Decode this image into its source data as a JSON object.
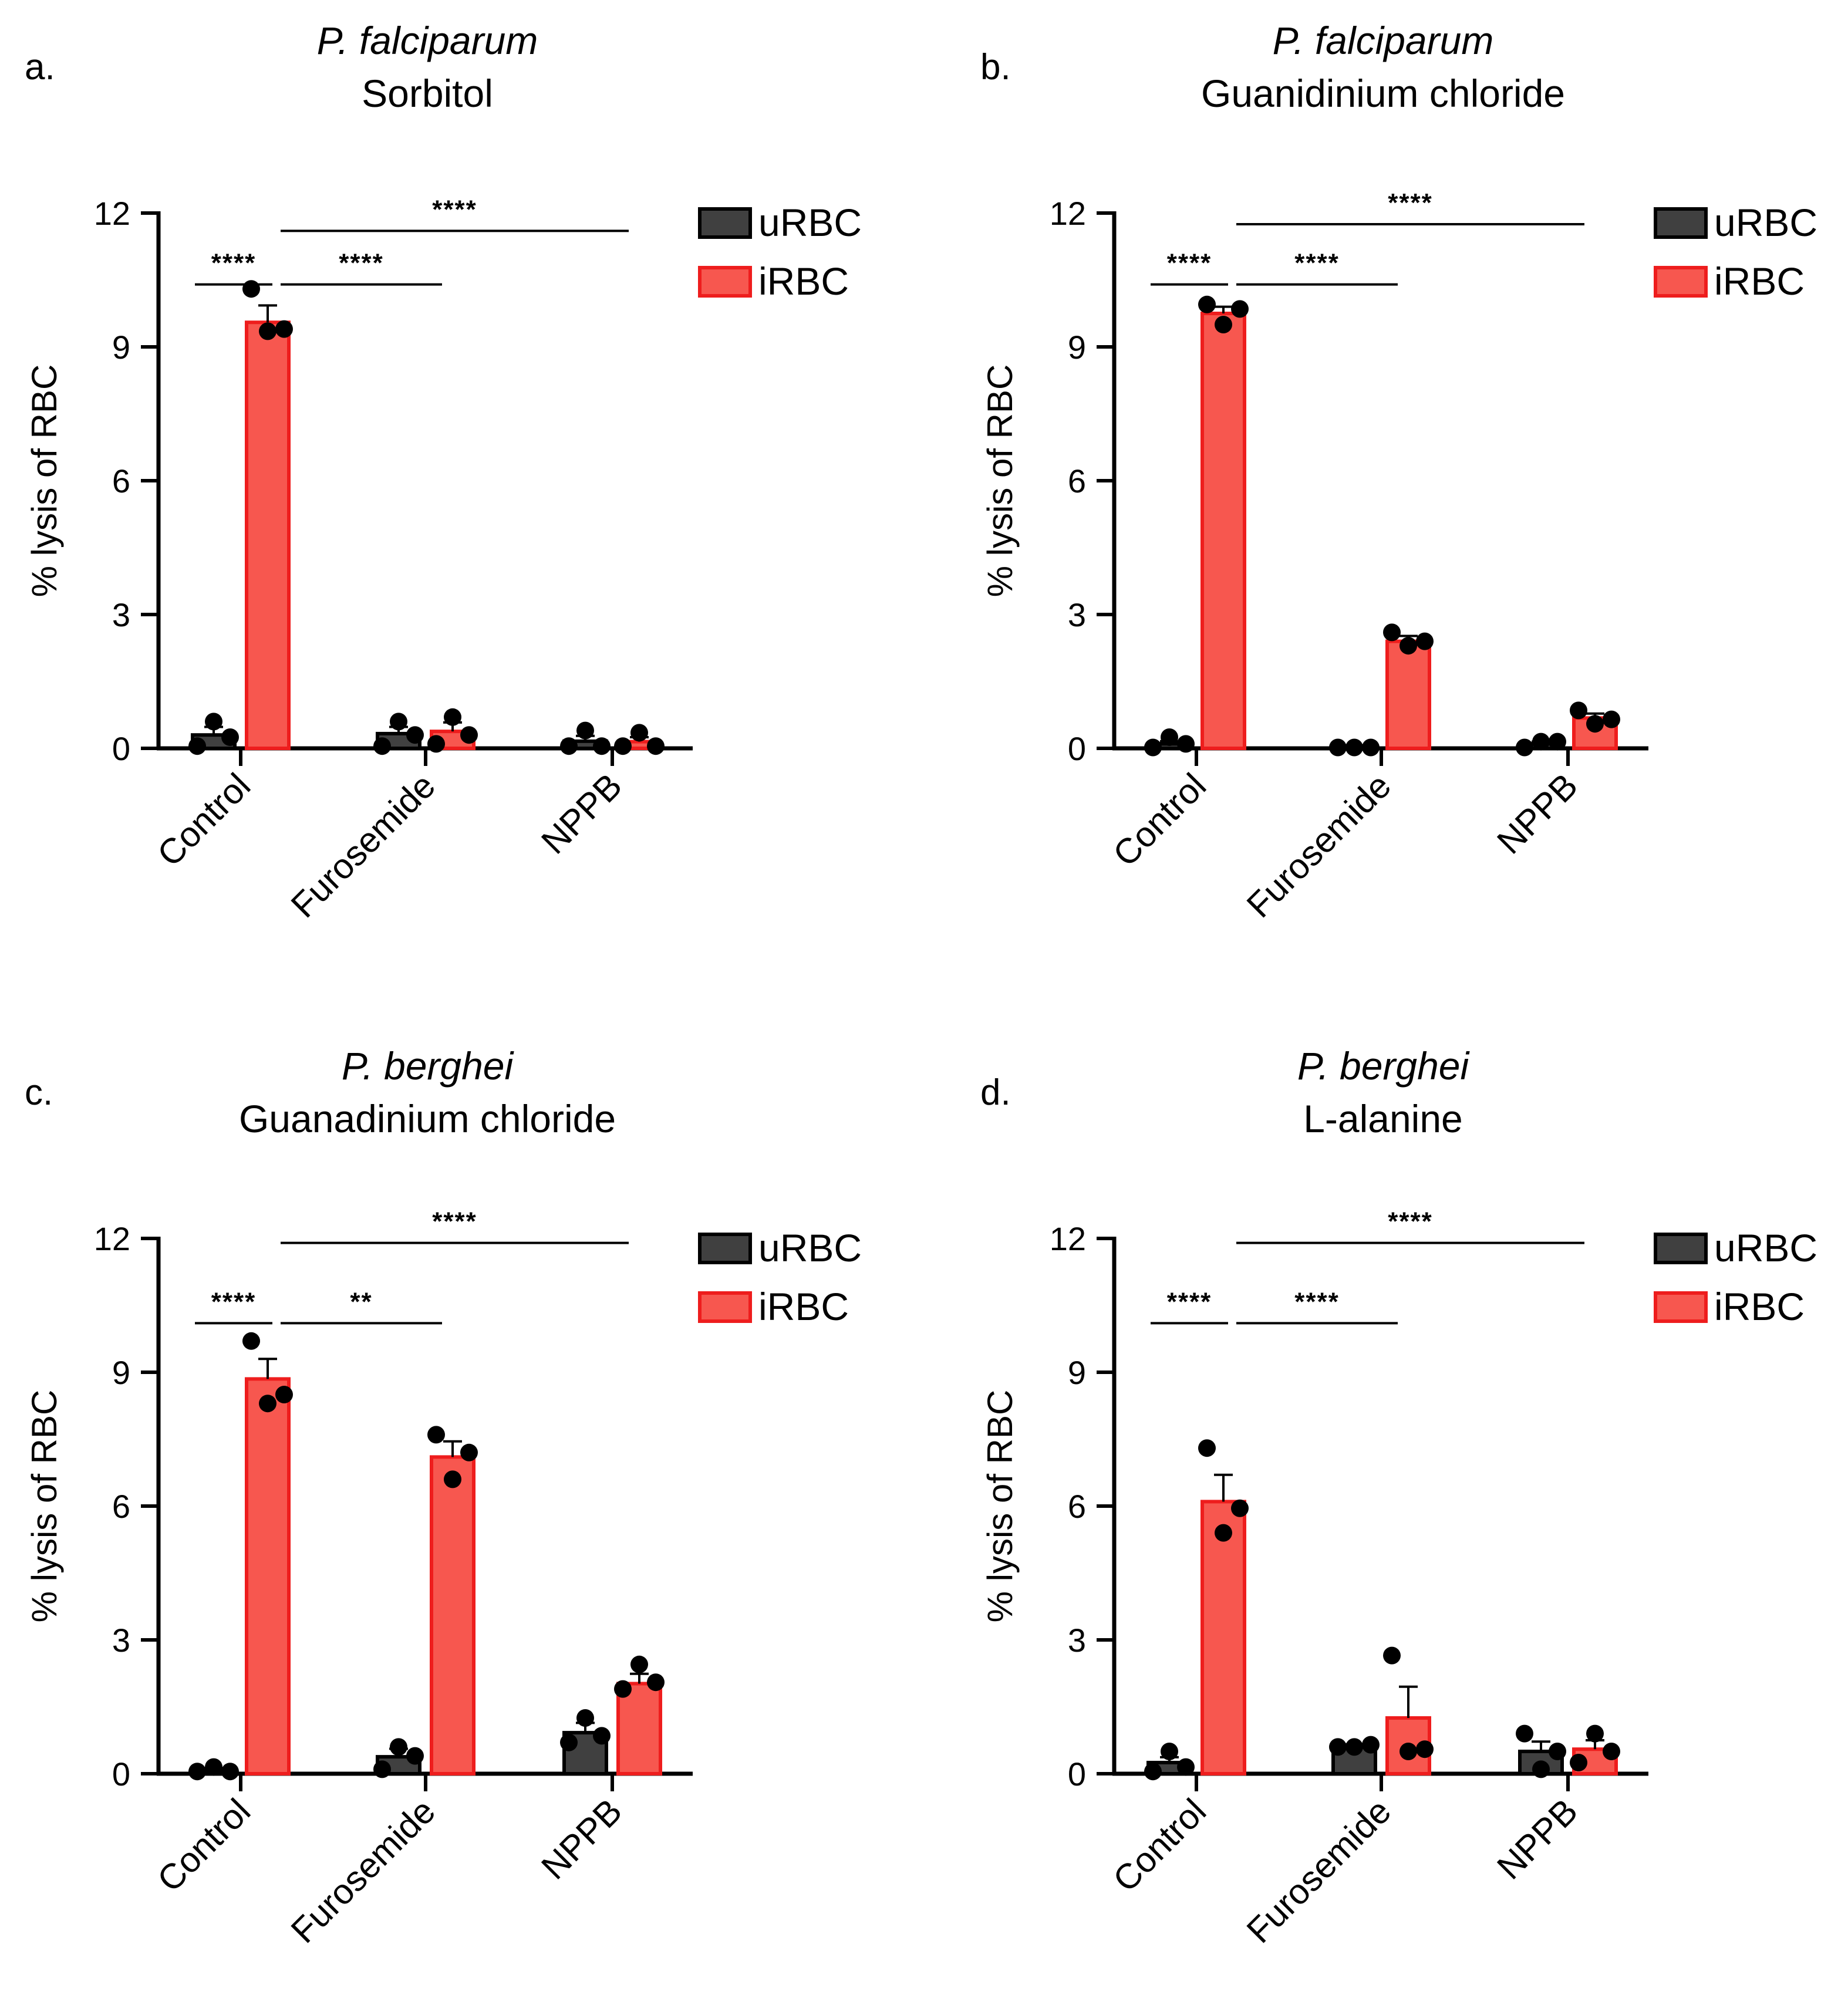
{
  "colors": {
    "uRBC_fill": "#404040",
    "uRBC_stroke": "#000000",
    "iRBC_fill": "#f7574f",
    "iRBC_stroke": "#ee1d1d",
    "axis": "#000000",
    "point": "#000000"
  },
  "chart_data": [
    {
      "type": "bar",
      "panel": "a.",
      "title": [
        "P. falciparum",
        "Sorbitol"
      ],
      "xlabel": "",
      "ylabel": "% lysis of RBC",
      "ylim": [
        0,
        12
      ],
      "yticks": [
        "0",
        "3",
        "6",
        "9",
        "12"
      ],
      "categories": [
        "Control",
        "Furosemide",
        "NPPB"
      ],
      "legend": [
        "uRBC",
        "iRBC"
      ],
      "series": [
        {
          "name": "uRBC",
          "values": [
            0.3,
            0.33,
            0.16
          ],
          "sem": [
            0.18,
            0.15,
            0.12
          ],
          "points": [
            [
              0.05,
              0.6,
              0.25
            ],
            [
              0.05,
              0.6,
              0.3
            ],
            [
              0.05,
              0.4,
              0.05
            ]
          ]
        },
        {
          "name": "iRBC",
          "values": [
            9.55,
            0.38,
            0.15
          ],
          "sem": [
            0.38,
            0.2,
            0.1
          ],
          "points": [
            [
              10.3,
              9.35,
              9.4
            ],
            [
              0.1,
              0.7,
              0.3
            ],
            [
              0.05,
              0.35,
              0.05
            ]
          ]
        }
      ],
      "significance": [
        {
          "from": [
            0,
            0
          ],
          "to": [
            0,
            1
          ],
          "level": 10.4,
          "label": "****"
        },
        {
          "from": [
            0,
            1
          ],
          "to": [
            1,
            1
          ],
          "level": 10.4,
          "label": "****"
        },
        {
          "from": [
            0,
            1
          ],
          "to": [
            2,
            1
          ],
          "level": 11.6,
          "label": "****"
        }
      ]
    },
    {
      "type": "bar",
      "panel": "b.",
      "title": [
        "P. falciparum",
        "Guanidinium chloride"
      ],
      "xlabel": "",
      "ylabel": "% lysis of RBC",
      "ylim": [
        0,
        12
      ],
      "yticks": [
        "0",
        "3",
        "6",
        "9",
        "12"
      ],
      "categories": [
        "Control",
        "Furosemide",
        "NPPB"
      ],
      "legend": [
        "uRBC",
        "iRBC"
      ],
      "series": [
        {
          "name": "uRBC",
          "values": [
            0.1,
            0.02,
            0.1
          ],
          "sem": [
            0.06,
            0.01,
            0.05
          ],
          "points": [
            [
              0.02,
              0.25,
              0.1
            ],
            [
              0.02,
              0.02,
              0.02
            ],
            [
              0.02,
              0.15,
              0.15
            ]
          ]
        },
        {
          "name": "iRBC",
          "values": [
            9.75,
            2.4,
            0.68
          ],
          "sem": [
            0.15,
            0.12,
            0.1
          ],
          "points": [
            [
              9.95,
              9.5,
              9.85
            ],
            [
              2.6,
              2.3,
              2.4
            ],
            [
              0.85,
              0.55,
              0.65
            ]
          ]
        }
      ],
      "significance": [
        {
          "from": [
            0,
            0
          ],
          "to": [
            0,
            1
          ],
          "level": 10.4,
          "label": "****"
        },
        {
          "from": [
            0,
            1
          ],
          "to": [
            1,
            1
          ],
          "level": 10.4,
          "label": "****"
        },
        {
          "from": [
            0,
            1
          ],
          "to": [
            2,
            1
          ],
          "level": 11.75,
          "label": "****"
        }
      ]
    },
    {
      "type": "bar",
      "panel": "c.",
      "title": [
        "P. berghei",
        "Guanadinium chloride"
      ],
      "xlabel": "",
      "ylabel": "% lysis of RBC",
      "ylim": [
        0,
        12
      ],
      "yticks": [
        "0",
        "3",
        "6",
        "9",
        "12"
      ],
      "categories": [
        "Control",
        "Furosemide",
        "NPPB"
      ],
      "legend": [
        "uRBC",
        "iRBC"
      ],
      "series": [
        {
          "name": "uRBC",
          "values": [
            0.08,
            0.38,
            0.92
          ],
          "sem": [
            0.04,
            0.18,
            0.22
          ],
          "points": [
            [
              0.05,
              0.15,
              0.05
            ],
            [
              0.1,
              0.6,
              0.4
            ],
            [
              0.7,
              1.25,
              0.85
            ]
          ]
        },
        {
          "name": "iRBC",
          "values": [
            8.85,
            7.1,
            2.02
          ],
          "sem": [
            0.45,
            0.35,
            0.22
          ],
          "points": [
            [
              9.7,
              8.3,
              8.5
            ],
            [
              7.6,
              6.6,
              7.2
            ],
            [
              1.9,
              2.45,
              2.05
            ]
          ]
        }
      ],
      "significance": [
        {
          "from": [
            0,
            0
          ],
          "to": [
            0,
            1
          ],
          "level": 10.1,
          "label": "****"
        },
        {
          "from": [
            0,
            1
          ],
          "to": [
            1,
            1
          ],
          "level": 10.1,
          "label": "**"
        },
        {
          "from": [
            0,
            1
          ],
          "to": [
            2,
            1
          ],
          "level": 11.9,
          "label": "****"
        }
      ]
    },
    {
      "type": "bar",
      "panel": "d.",
      "title": [
        "P. berghei",
        "L-alanine"
      ],
      "xlabel": "",
      "ylabel": "% lysis of RBC",
      "ylim": [
        0,
        12
      ],
      "yticks": [
        "0",
        "3",
        "6",
        "9",
        "12"
      ],
      "categories": [
        "Control",
        "Furosemide",
        "NPPB"
      ],
      "legend": [
        "uRBC",
        "iRBC"
      ],
      "series": [
        {
          "name": "uRBC",
          "values": [
            0.25,
            0.62,
            0.5
          ],
          "sem": [
            0.12,
            0.04,
            0.22
          ],
          "points": [
            [
              0.05,
              0.5,
              0.15
            ],
            [
              0.6,
              0.6,
              0.65
            ],
            [
              0.9,
              0.1,
              0.5
            ]
          ]
        },
        {
          "name": "iRBC",
          "values": [
            6.1,
            1.25,
            0.55
          ],
          "sem": [
            0.6,
            0.7,
            0.2
          ],
          "points": [
            [
              7.3,
              5.4,
              5.95
            ],
            [
              2.65,
              0.5,
              0.55
            ],
            [
              0.25,
              0.9,
              0.5
            ]
          ]
        }
      ],
      "significance": [
        {
          "from": [
            0,
            0
          ],
          "to": [
            0,
            1
          ],
          "level": 10.1,
          "label": "****"
        },
        {
          "from": [
            0,
            1
          ],
          "to": [
            1,
            1
          ],
          "level": 10.1,
          "label": "****"
        },
        {
          "from": [
            0,
            1
          ],
          "to": [
            2,
            1
          ],
          "level": 11.9,
          "label": "****"
        }
      ]
    }
  ]
}
